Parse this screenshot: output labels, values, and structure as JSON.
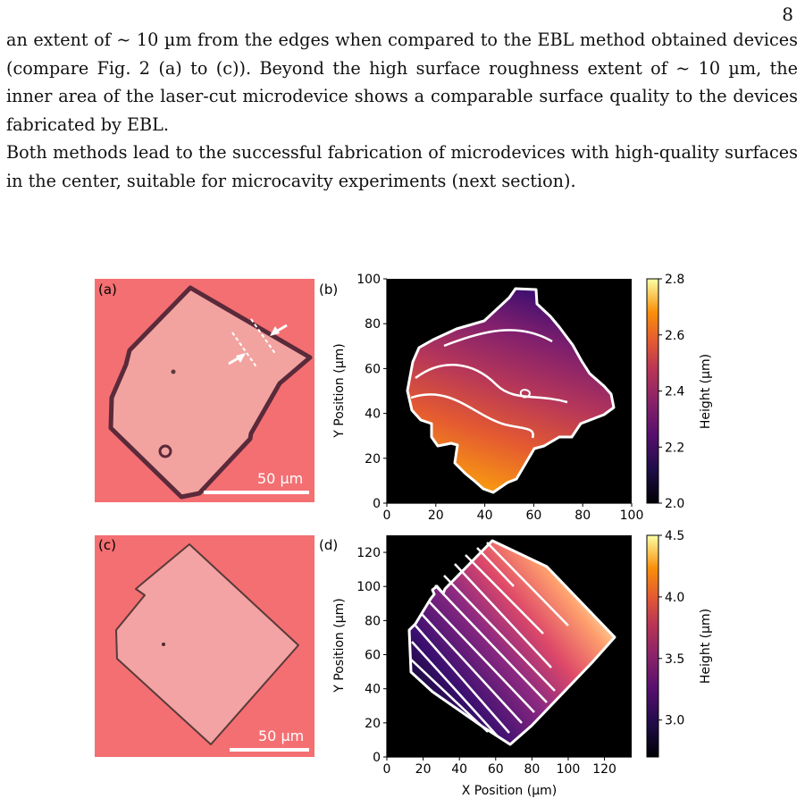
{
  "page": {
    "number": "8",
    "paragraphs": [
      "an extent of ∼ 10 µm from the edges when compared to the EBL method obtained devices (compare Fig. 2 (a) to (c)). Beyond the high surface roughness extent of ∼ 10 µm, the inner area of the laser-cut microdevice shows a comparable surface quality to the devices fabricated by EBL.",
      "Both methods lead to the successful fabrication of microdevices with high-quality surfaces in the center, suitable for microcavity experiments (next section)."
    ]
  },
  "figure": {
    "panel_labels": {
      "a": "(a)",
      "b": "(b)",
      "c": "(c)",
      "d": "(d)"
    },
    "scale_bar_a": "50 µm",
    "scale_bar_c": "50 µm",
    "colors": {
      "microscope_bg": "#f46f72",
      "device_a": "#f2a3a0",
      "device_c": "#f3a3a3",
      "map_bg": "#000000",
      "contour": "#ffffff"
    }
  },
  "chart_data": [
    {
      "type": "heatmap",
      "panel": "(b)",
      "xlabel": "",
      "ylabel": "Y Position (µm)",
      "xlim": [
        0,
        100
      ],
      "ylim": [
        0,
        100
      ],
      "xticks": [
        0,
        20,
        40,
        60,
        80,
        100
      ],
      "yticks": [
        0,
        20,
        40,
        60,
        80,
        100
      ],
      "colorbar": {
        "label": "Height (µm)",
        "range": [
          2.0,
          2.8
        ],
        "ticks": [
          "2.0",
          "2.2",
          "2.4",
          "2.6",
          "2.8"
        ],
        "colormap": "inferno"
      }
    },
    {
      "type": "heatmap",
      "panel": "(d)",
      "xlabel": "X Position (µm)",
      "ylabel": "Y Position (µm)",
      "xlim": [
        0,
        135
      ],
      "ylim": [
        0,
        130
      ],
      "xticks": [
        0,
        20,
        40,
        60,
        80,
        100,
        120
      ],
      "yticks": [
        0,
        20,
        40,
        60,
        80,
        100,
        120
      ],
      "colorbar": {
        "label": "Height (µm)",
        "range": [
          2.7,
          4.5
        ],
        "ticks": [
          "3.0",
          "3.5",
          "4.0",
          "4.5"
        ],
        "colormap": "inferno"
      }
    }
  ]
}
